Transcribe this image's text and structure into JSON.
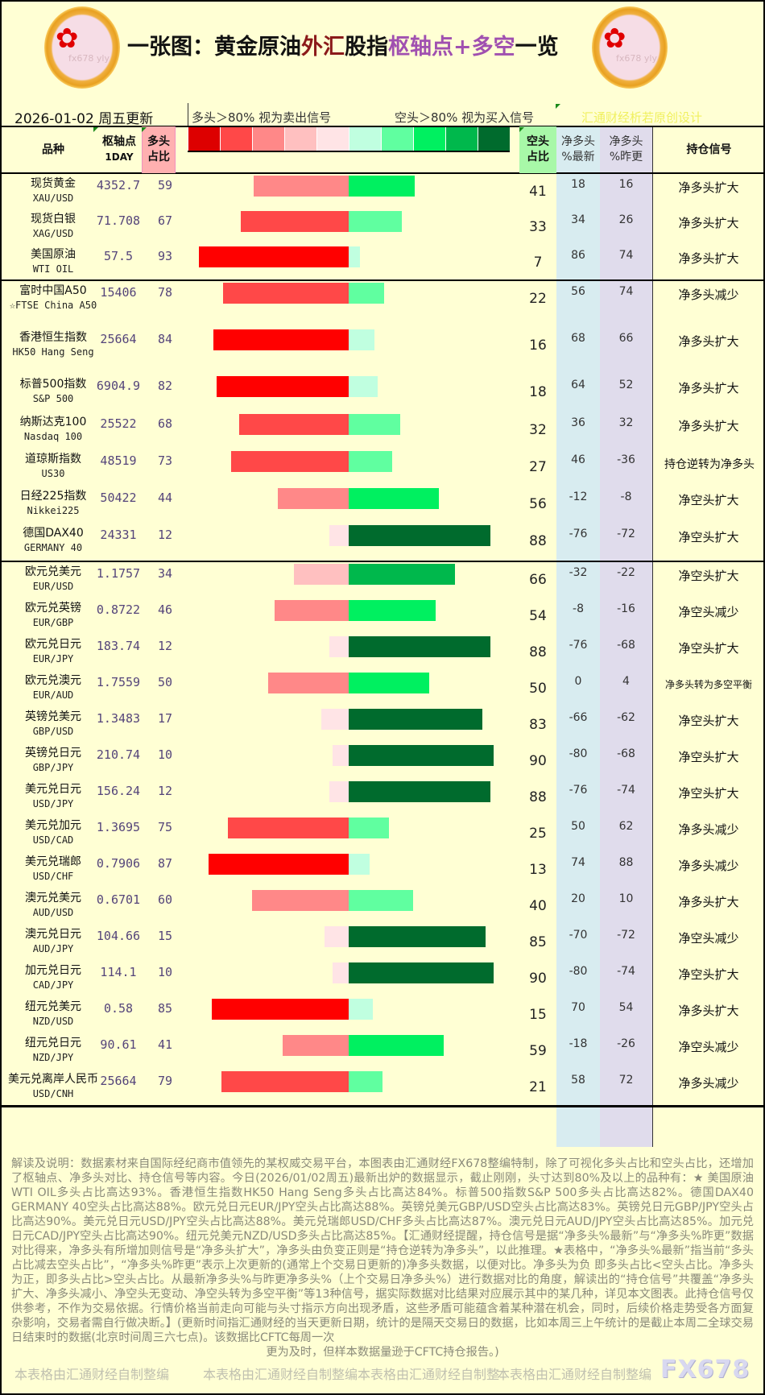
{
  "header": {
    "title_parts": [
      "一张图：黄金原油",
      "外汇",
      "股指",
      "枢轴点+多空",
      "一览"
    ],
    "date_label": "2026-01-02 周五更新",
    "long_note": "多头＞80% 视为卖出信号",
    "short_note": "空头＞80% 视为买入信号",
    "credit": "汇通财经析若原创设计",
    "logo_text": "fx678 yly"
  },
  "columns": {
    "name": "品种",
    "pivot": [
      "枢轴点",
      "1DAY"
    ],
    "long": [
      "多头",
      "占比"
    ],
    "short": [
      "空头",
      "占比"
    ],
    "net_latest": [
      "净多头",
      "%最新"
    ],
    "net_prev": [
      "净多头",
      "%昨更"
    ],
    "signal": "持仓信号"
  },
  "colors": {
    "legend": [
      "#dd0000",
      "#ff4848",
      "#ff8888",
      "#ffc0c0",
      "#ffe4e6",
      "#c0ffe0",
      "#60ffa0",
      "#00f060",
      "#00b84c",
      "#006b2d"
    ],
    "long_levels": [
      "#ffe4e6",
      "#ffc0c0",
      "#ff8888",
      "#ff4848",
      "#ff0000"
    ],
    "short_levels": [
      "#c0ffe0",
      "#60ffa0",
      "#00f060",
      "#00b84c",
      "#006b2d"
    ],
    "background": "#ffffd4",
    "pivot_text": "#54447a",
    "net_latest_bg": "#d8ecf0",
    "net_prev_bg": "#e0dcec"
  },
  "groups": [
    {
      "rows": [
        {
          "name": "现货黄金",
          "code": "XAU/USD",
          "pivot": "4352.7",
          "long": 59,
          "short": 41,
          "net_latest": "18",
          "net_prev": "16",
          "signal": "净多头扩大"
        },
        {
          "name": "现货白银",
          "code": "XAG/USD",
          "pivot": "71.708",
          "long": 67,
          "short": 33,
          "net_latest": "34",
          "net_prev": "26",
          "signal": "净多头扩大"
        },
        {
          "name": "美国原油",
          "code": "WTI OIL",
          "pivot": "57.5",
          "long": 93,
          "short": 7,
          "net_latest": "86",
          "net_prev": "74",
          "signal": "净多头扩大"
        }
      ]
    },
    {
      "rows": [
        {
          "name": "富时中国A50",
          "code": "☆FTSE China A50",
          "pivot": "15406",
          "long": 78,
          "short": 22,
          "net_latest": "56",
          "net_prev": "74",
          "signal": "净多头减少"
        },
        {
          "name": "香港恒生指数",
          "code": "HK50 Hang Seng",
          "pivot": "25664",
          "long": 84,
          "short": 16,
          "net_latest": "68",
          "net_prev": "66",
          "signal": "净多头扩大"
        },
        {
          "name": "标普500指数",
          "code": "S&P 500",
          "pivot": "6904.9",
          "long": 82,
          "short": 18,
          "net_latest": "64",
          "net_prev": "52",
          "signal": "净多头扩大"
        },
        {
          "name": "纳斯达克100",
          "code": "Nasdaq 100",
          "pivot": "25522",
          "long": 68,
          "short": 32,
          "net_latest": "36",
          "net_prev": "32",
          "signal": "净多头扩大"
        },
        {
          "name": "道琼斯指数",
          "code": "US30",
          "pivot": "48519",
          "long": 73,
          "short": 27,
          "net_latest": "46",
          "net_prev": "-36",
          "signal": "持仓逆转为净多头"
        },
        {
          "name": "日经225指数",
          "code": "Nikkei225",
          "pivot": "50422",
          "long": 44,
          "short": 56,
          "net_latest": "-12",
          "net_prev": "-8",
          "signal": "净空头扩大"
        },
        {
          "name": "德国DAX40",
          "code": "GERMANY 40",
          "pivot": "24331",
          "long": 12,
          "short": 88,
          "net_latest": "-76",
          "net_prev": "-72",
          "signal": "净空头扩大"
        }
      ]
    },
    {
      "rows": [
        {
          "name": "欧元兑美元",
          "code": "EUR/USD",
          "pivot": "1.1757",
          "long": 34,
          "short": 66,
          "net_latest": "-32",
          "net_prev": "-22",
          "signal": "净空头扩大"
        },
        {
          "name": "欧元兑英镑",
          "code": "EUR/GBP",
          "pivot": "0.8722",
          "long": 46,
          "short": 54,
          "net_latest": "-8",
          "net_prev": "-16",
          "signal": "净空头减少"
        },
        {
          "name": "欧元兑日元",
          "code": "EUR/JPY",
          "pivot": "183.74",
          "long": 12,
          "short": 88,
          "net_latest": "-76",
          "net_prev": "-68",
          "signal": "净空头扩大"
        },
        {
          "name": "欧元兑澳元",
          "code": "EUR/AUD",
          "pivot": "1.7559",
          "long": 50,
          "short": 50,
          "net_latest": "0",
          "net_prev": "4",
          "signal": "净多头转为多空平衡"
        },
        {
          "name": "英镑兑美元",
          "code": "GBP/USD",
          "pivot": "1.3483",
          "long": 17,
          "short": 83,
          "net_latest": "-66",
          "net_prev": "-62",
          "signal": "净空头扩大"
        },
        {
          "name": "英镑兑日元",
          "code": "GBP/JPY",
          "pivot": "210.74",
          "long": 10,
          "short": 90,
          "net_latest": "-80",
          "net_prev": "-68",
          "signal": "净空头扩大"
        },
        {
          "name": "美元兑日元",
          "code": "USD/JPY",
          "pivot": "156.24",
          "long": 12,
          "short": 88,
          "net_latest": "-76",
          "net_prev": "-74",
          "signal": "净空头扩大"
        },
        {
          "name": "美元兑加元",
          "code": "USD/CAD",
          "pivot": "1.3695",
          "long": 75,
          "short": 25,
          "net_latest": "50",
          "net_prev": "62",
          "signal": "净多头减少"
        },
        {
          "name": "美元兑瑞郎",
          "code": "USD/CHF",
          "pivot": "0.7906",
          "long": 87,
          "short": 13,
          "net_latest": "74",
          "net_prev": "88",
          "signal": "净多头减少"
        },
        {
          "name": "澳元兑美元",
          "code": "AUD/USD",
          "pivot": "0.6701",
          "long": 60,
          "short": 40,
          "net_latest": "20",
          "net_prev": "10",
          "signal": "净多头扩大"
        },
        {
          "name": "澳元兑日元",
          "code": "AUD/JPY",
          "pivot": "104.66",
          "long": 15,
          "short": 85,
          "net_latest": "-70",
          "net_prev": "-72",
          "signal": "净空头减少"
        },
        {
          "name": "加元兑日元",
          "code": "CAD/JPY",
          "pivot": "114.1",
          "long": 10,
          "short": 90,
          "net_latest": "-80",
          "net_prev": "-74",
          "signal": "净空头扩大"
        },
        {
          "name": "纽元兑美元",
          "code": "NZD/USD",
          "pivot": "0.58",
          "long": 85,
          "short": 15,
          "net_latest": "70",
          "net_prev": "54",
          "signal": "净多头扩大"
        },
        {
          "name": "纽元兑日元",
          "code": "NZD/JPY",
          "pivot": "90.61",
          "long": 41,
          "short": 59,
          "net_latest": "-18",
          "net_prev": "-26",
          "signal": "净空头减少"
        },
        {
          "name": "美元兑离岸人民币",
          "code": "USD/CNH",
          "pivot": "25664",
          "long": 79,
          "short": 21,
          "net_latest": "58",
          "net_prev": "72",
          "signal": "净多头减少"
        }
      ]
    }
  ],
  "footer": {
    "text": "解读及说明：数据素材来自国际经纪商市值领先的某权威交易平台，本图表由汇通财经FX678整编特制，除了可视化多头占比和空头占比，还增加了枢轴点、净多头对比、持仓信号等内容。今日(2026/01/02周五)最新出炉的数据显示，截止刚刚，头寸达到80%及以上的品种有：★ 美国原油WTI OIL多头占比高达93%。香港恒生指数HK50 Hang Seng多头占比高达84%。标普500指数S&P 500多头占比高达82%。德国DAX40 GERMANY 40空头占比高达88%。欧元兑日元EUR/JPY空头占比高达88%。英镑兑美元GBP/USD空头占比高达83%。英镑兑日元GBP/JPY空头占比高达90%。美元兑日元USD/JPY空头占比高达88%。美元兑瑞郎USD/CHF多头占比高达87%。澳元兑日元AUD/JPY空头占比高达85%。加元兑日元CAD/JPY空头占比高达90%。纽元兑美元NZD/USD多头占比高达85%。【汇通财经提醒，持仓信号是据“净多头%最新”与“净多头%昨更”数据对比得来，净多头有所增加则信号是“净多头扩大”，净多头由负变正则是“持仓逆转为净多头”，以此推理。★表格中，“净多头%最新”指当前“多头占比减去空头占比”，“净多头%昨更”表示上次更新的(通常上个交易日更新的)净多头数据，以便对比。净多头为负 即多头占比<空头占比。净多头为正，即多头占比>空头占比。从最新净多头%与昨更净多头%（上个交易日净多头%）进行数据对比的角度，解读出的“持仓信号”共覆盖“净多头扩大、净多头减小、净空头无变动、净空头转为多空平衡”等13种信号，据实际数据对比结果对应展示其中的某几种，详见本文图表。此持仓信号仅供参考，不作为交易依据。行情价格当前走向可能与头寸指示方向出现矛盾，这些矛盾可能蕴含着某种潜在机会，同时，后续价格走势受各方面复杂影响，交易者需自行做决断。】(更新时间指汇通财经的当天更新日期，统计的是隔天交易日的数据，比如本周三上午统计的是截止本周二全球交易日结束时的数据(北京时间周三六七点)。该数据比CFTC每周一次",
    "last_line": "更为及时，但样本数据量逊于CFTC持仓报告。)",
    "watermarks": [
      "本表格由汇通财经自制整编",
      "本表格由汇通财经自制整编",
      "本表格由汇通财经自制整",
      "本表格由汇通财经自制整编"
    ],
    "brand": "FX678"
  }
}
